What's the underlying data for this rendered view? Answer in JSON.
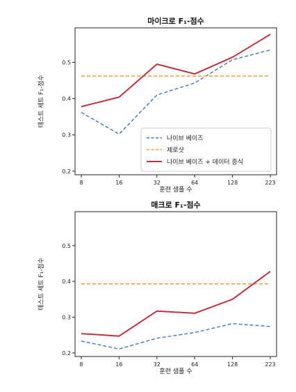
{
  "chart_data": [
    {
      "type": "line",
      "title": "마이크로 F₁-점수",
      "xlabel": "훈련 샘플 수",
      "ylabel": "테스트 세트 F₁-점수",
      "categories": [
        "8",
        "16",
        "32",
        "64",
        "128",
        "223"
      ],
      "ylim": [
        0.19,
        0.595
      ],
      "yticks": [
        "0.2",
        "0.3",
        "0.4",
        "0.5"
      ],
      "grid": false,
      "legend": "lower-right",
      "series": [
        {
          "name": "나이브 베이즈",
          "style": "dashed",
          "color": "#4a7fc4",
          "values": [
            0.362,
            0.302,
            0.41,
            0.443,
            0.507,
            0.534
          ]
        },
        {
          "name": "제로샷",
          "style": "dashed",
          "color": "#f59b3a",
          "values": [
            0.462,
            0.462,
            0.462,
            0.462,
            0.462,
            0.462
          ]
        },
        {
          "name": "나이브 베이즈 + 데이터 증식",
          "style": "solid",
          "color": "#c1303f",
          "values": [
            0.378,
            0.404,
            0.495,
            0.468,
            0.514,
            0.577
          ]
        }
      ]
    },
    {
      "type": "line",
      "title": "매크로 F₁-점수",
      "xlabel": "훈련 샘플 수",
      "ylabel": "테스트 세트 F₁-점수",
      "categories": [
        "8",
        "16",
        "32",
        "64",
        "128",
        "223"
      ],
      "ylim": [
        0.19,
        0.595
      ],
      "yticks": [
        "0.2",
        "0.3",
        "0.4",
        "0.5"
      ],
      "grid": false,
      "series": [
        {
          "name": "나이브 베이즈",
          "style": "dashed",
          "color": "#4a7fc4",
          "values": [
            0.233,
            0.211,
            0.241,
            0.257,
            0.282,
            0.274
          ]
        },
        {
          "name": "제로샷",
          "style": "dashed",
          "color": "#f59b3a",
          "values": [
            0.393,
            0.393,
            0.393,
            0.393,
            0.393,
            0.393
          ]
        },
        {
          "name": "나이브 베이즈 + 데이터 증식",
          "style": "solid",
          "color": "#c1303f",
          "values": [
            0.254,
            0.247,
            0.317,
            0.311,
            0.35,
            0.428
          ]
        }
      ]
    }
  ]
}
